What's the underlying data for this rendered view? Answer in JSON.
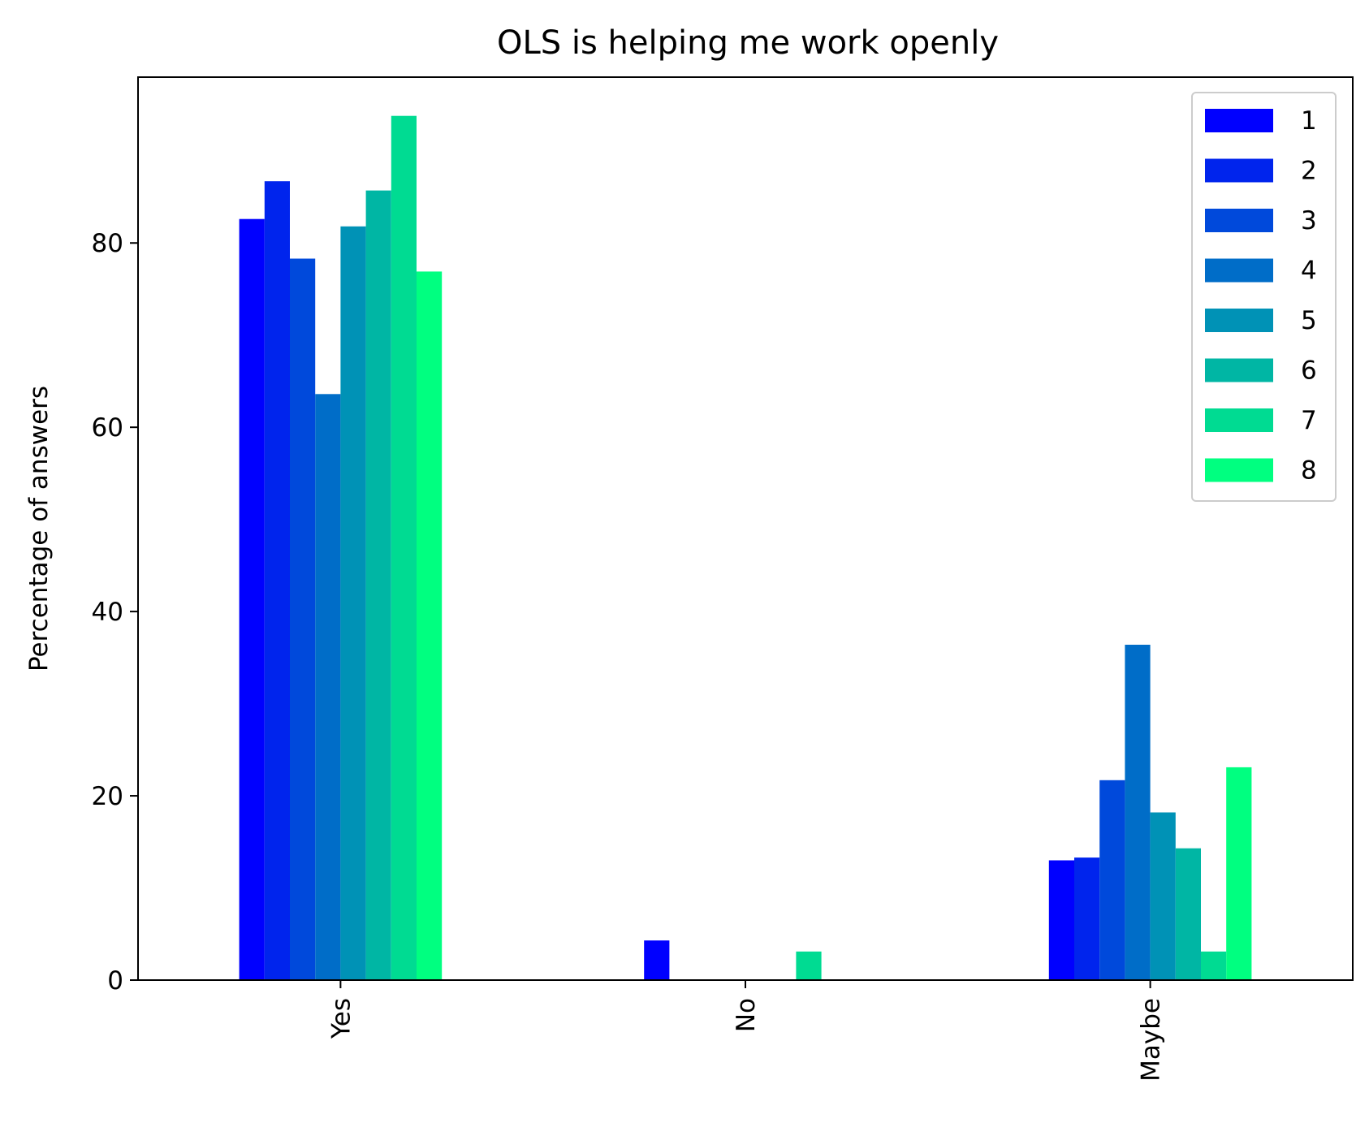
{
  "chart_data": {
    "type": "bar",
    "title": "OLS is helping me work openly",
    "xlabel": "",
    "ylabel": "Percentage of answers",
    "categories": [
      "Yes",
      "No",
      "Maybe"
    ],
    "ylim": [
      0,
      98
    ],
    "yticks": [
      0,
      20,
      40,
      60,
      80
    ],
    "grid": false,
    "legend_position": "top-right",
    "xtick_rotation": "vertical",
    "series": [
      {
        "name": "1",
        "color": "#0000ff",
        "values": [
          82.6,
          4.3,
          13.0
        ]
      },
      {
        "name": "2",
        "color": "#0024ed",
        "values": [
          86.7,
          0.0,
          13.3
        ]
      },
      {
        "name": "3",
        "color": "#0049db",
        "values": [
          78.3,
          0.0,
          21.7
        ]
      },
      {
        "name": "4",
        "color": "#006dc8",
        "values": [
          63.6,
          0.0,
          36.4
        ]
      },
      {
        "name": "5",
        "color": "#0092b6",
        "values": [
          81.8,
          0.0,
          18.2
        ]
      },
      {
        "name": "6",
        "color": "#00b6a4",
        "values": [
          85.7,
          0.0,
          14.3
        ]
      },
      {
        "name": "7",
        "color": "#00db92",
        "values": [
          93.8,
          3.1,
          3.1
        ]
      },
      {
        "name": "8",
        "color": "#00ff80",
        "values": [
          76.9,
          0.0,
          23.1
        ]
      }
    ]
  }
}
